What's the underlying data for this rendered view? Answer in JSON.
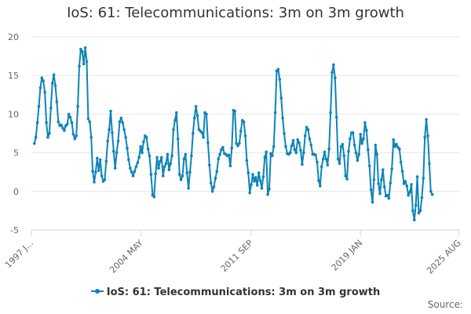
{
  "chart_data": {
    "type": "line",
    "title": "IoS: 61: Telecommunications: 3m on 3m growth",
    "xlabel": "",
    "ylabel": "",
    "ylim": [
      -5,
      20
    ],
    "y_ticks": [
      -5,
      0,
      5,
      10,
      15,
      20
    ],
    "x_range": [
      1997.0,
      2025.6
    ],
    "x_tick_labels": [
      {
        "x": 1997.0,
        "label": "1997 J..."
      },
      {
        "x": 2004.33,
        "label": "2004 MAY"
      },
      {
        "x": 2011.67,
        "label": "2011 SEP"
      },
      {
        "x": 2019.0,
        "label": "2019 JAN"
      },
      {
        "x": 2025.58,
        "label": "2025 AUG"
      }
    ],
    "grid": true,
    "legend": "bottom",
    "series": [
      {
        "name": "IoS: 61: Telecommunications: 3m on 3m growth",
        "color": "#0e84b8",
        "points": [
          [
            1997.2,
            6.2
          ],
          [
            1997.3,
            7.0
          ],
          [
            1997.4,
            8.9
          ],
          [
            1997.5,
            11.0
          ],
          [
            1997.6,
            13.4
          ],
          [
            1997.7,
            14.7
          ],
          [
            1997.8,
            14.3
          ],
          [
            1997.9,
            12.8
          ],
          [
            1998.0,
            8.9
          ],
          [
            1998.1,
            7.0
          ],
          [
            1998.2,
            7.5
          ],
          [
            1998.3,
            10.8
          ],
          [
            1998.4,
            14.0
          ],
          [
            1998.5,
            15.1
          ],
          [
            1998.6,
            13.7
          ],
          [
            1998.7,
            11.6
          ],
          [
            1998.8,
            9.0
          ],
          [
            1998.9,
            8.5
          ],
          [
            1999.0,
            8.6
          ],
          [
            1999.1,
            8.2
          ],
          [
            1999.2,
            7.9
          ],
          [
            1999.3,
            8.5
          ],
          [
            1999.4,
            8.7
          ],
          [
            1999.5,
            10.0
          ],
          [
            1999.6,
            9.6
          ],
          [
            1999.7,
            8.9
          ],
          [
            1999.8,
            7.4
          ],
          [
            1999.9,
            6.8
          ],
          [
            2000.0,
            7.2
          ],
          [
            2000.1,
            11.0
          ],
          [
            2000.2,
            16.2
          ],
          [
            2000.3,
            18.4
          ],
          [
            2000.4,
            18.1
          ],
          [
            2000.5,
            16.5
          ],
          [
            2000.6,
            18.6
          ],
          [
            2000.7,
            16.8
          ],
          [
            2000.8,
            9.4
          ],
          [
            2000.9,
            9.0
          ],
          [
            2001.0,
            7.0
          ],
          [
            2001.1,
            2.6
          ],
          [
            2001.2,
            1.2
          ],
          [
            2001.3,
            2.5
          ],
          [
            2001.4,
            4.3
          ],
          [
            2001.5,
            2.7
          ],
          [
            2001.6,
            4.1
          ],
          [
            2001.7,
            2.0
          ],
          [
            2001.8,
            1.3
          ],
          [
            2001.9,
            1.5
          ],
          [
            2002.0,
            3.9
          ],
          [
            2002.1,
            6.5
          ],
          [
            2002.2,
            8.0
          ],
          [
            2002.3,
            10.4
          ],
          [
            2002.4,
            7.6
          ],
          [
            2002.5,
            5.2
          ],
          [
            2002.6,
            3.0
          ],
          [
            2002.7,
            5.0
          ],
          [
            2002.8,
            6.5
          ],
          [
            2002.9,
            9.0
          ],
          [
            2003.0,
            9.5
          ],
          [
            2003.1,
            8.9
          ],
          [
            2003.2,
            8.0
          ],
          [
            2003.3,
            7.0
          ],
          [
            2003.4,
            5.6
          ],
          [
            2003.5,
            4.1
          ],
          [
            2003.6,
            3.0
          ],
          [
            2003.7,
            2.5
          ],
          [
            2003.8,
            2.0
          ],
          [
            2003.9,
            2.6
          ],
          [
            2004.0,
            3.2
          ],
          [
            2004.1,
            3.7
          ],
          [
            2004.2,
            4.4
          ],
          [
            2004.3,
            5.8
          ],
          [
            2004.4,
            5.0
          ],
          [
            2004.5,
            6.4
          ],
          [
            2004.6,
            7.2
          ],
          [
            2004.7,
            7.0
          ],
          [
            2004.8,
            5.5
          ],
          [
            2004.9,
            4.6
          ],
          [
            2005.0,
            2.2
          ],
          [
            2005.1,
            -0.5
          ],
          [
            2005.2,
            -0.7
          ],
          [
            2005.3,
            2.3
          ],
          [
            2005.4,
            4.4
          ],
          [
            2005.5,
            3.0
          ],
          [
            2005.6,
            3.9
          ],
          [
            2005.7,
            4.4
          ],
          [
            2005.8,
            2.0
          ],
          [
            2005.9,
            3.2
          ],
          [
            2006.0,
            3.6
          ],
          [
            2006.1,
            4.8
          ],
          [
            2006.2,
            2.8
          ],
          [
            2006.3,
            3.6
          ],
          [
            2006.4,
            4.6
          ],
          [
            2006.5,
            8.0
          ],
          [
            2006.6,
            9.2
          ],
          [
            2006.7,
            10.2
          ],
          [
            2006.8,
            6.8
          ],
          [
            2006.9,
            2.2
          ],
          [
            2007.0,
            1.5
          ],
          [
            2007.1,
            2.0
          ],
          [
            2007.2,
            4.2
          ],
          [
            2007.3,
            4.8
          ],
          [
            2007.4,
            2.4
          ],
          [
            2007.5,
            0.4
          ],
          [
            2007.6,
            2.5
          ],
          [
            2007.7,
            4.6
          ],
          [
            2007.8,
            7.5
          ],
          [
            2007.9,
            9.5
          ],
          [
            2008.0,
            11.0
          ],
          [
            2008.1,
            9.8
          ],
          [
            2008.2,
            8.0
          ],
          [
            2008.3,
            7.8
          ],
          [
            2008.4,
            7.6
          ],
          [
            2008.5,
            7.0
          ],
          [
            2008.6,
            10.2
          ],
          [
            2008.7,
            10.0
          ],
          [
            2008.8,
            6.3
          ],
          [
            2008.9,
            3.4
          ],
          [
            2009.0,
            1.1
          ],
          [
            2009.1,
            0.0
          ],
          [
            2009.2,
            0.6
          ],
          [
            2009.3,
            1.7
          ],
          [
            2009.4,
            2.6
          ],
          [
            2009.5,
            4.2
          ],
          [
            2009.6,
            4.8
          ],
          [
            2009.7,
            5.4
          ],
          [
            2009.8,
            5.7
          ],
          [
            2009.9,
            4.9
          ],
          [
            2010.0,
            4.8
          ],
          [
            2010.1,
            4.6
          ],
          [
            2010.2,
            4.7
          ],
          [
            2010.3,
            3.3
          ],
          [
            2010.4,
            5.6
          ],
          [
            2010.5,
            10.5
          ],
          [
            2010.6,
            10.4
          ],
          [
            2010.7,
            6.2
          ],
          [
            2010.8,
            5.9
          ],
          [
            2010.9,
            6.2
          ],
          [
            2011.0,
            7.8
          ],
          [
            2011.1,
            9.2
          ],
          [
            2011.2,
            9.0
          ],
          [
            2011.3,
            7.2
          ],
          [
            2011.4,
            4.0
          ],
          [
            2011.5,
            2.4
          ],
          [
            2011.6,
            -0.2
          ],
          [
            2011.7,
            0.9
          ],
          [
            2011.8,
            2.2
          ],
          [
            2011.9,
            1.3
          ],
          [
            2012.0,
            1.8
          ],
          [
            2012.1,
            0.8
          ],
          [
            2012.2,
            2.4
          ],
          [
            2012.3,
            1.4
          ],
          [
            2012.4,
            0.4
          ],
          [
            2012.5,
            1.9
          ],
          [
            2012.6,
            4.4
          ],
          [
            2012.7,
            5.1
          ],
          [
            2012.8,
            -0.4
          ],
          [
            2012.9,
            0.3
          ],
          [
            2013.0,
            4.9
          ],
          [
            2013.1,
            4.6
          ],
          [
            2013.2,
            5.8
          ],
          [
            2013.3,
            10.2
          ],
          [
            2013.4,
            15.6
          ],
          [
            2013.5,
            15.8
          ],
          [
            2013.6,
            14.5
          ],
          [
            2013.7,
            12.1
          ],
          [
            2013.8,
            9.5
          ],
          [
            2013.9,
            7.5
          ],
          [
            2014.0,
            5.8
          ],
          [
            2014.1,
            4.9
          ],
          [
            2014.2,
            4.8
          ],
          [
            2014.3,
            5.0
          ],
          [
            2014.4,
            5.9
          ],
          [
            2014.5,
            6.6
          ],
          [
            2014.6,
            5.4
          ],
          [
            2014.7,
            5.0
          ],
          [
            2014.8,
            6.7
          ],
          [
            2014.9,
            6.3
          ],
          [
            2015.0,
            5.3
          ],
          [
            2015.1,
            3.5
          ],
          [
            2015.2,
            5.0
          ],
          [
            2015.3,
            7.2
          ],
          [
            2015.4,
            8.3
          ],
          [
            2015.5,
            8.0
          ],
          [
            2015.6,
            6.8
          ],
          [
            2015.7,
            6.0
          ],
          [
            2015.8,
            4.8
          ],
          [
            2015.9,
            4.8
          ],
          [
            2016.0,
            4.7
          ],
          [
            2016.1,
            3.8
          ],
          [
            2016.2,
            1.4
          ],
          [
            2016.3,
            0.7
          ],
          [
            2016.4,
            3.2
          ],
          [
            2016.5,
            4.2
          ],
          [
            2016.6,
            5.1
          ],
          [
            2016.7,
            4.2
          ],
          [
            2016.8,
            3.4
          ],
          [
            2016.9,
            5.5
          ],
          [
            2017.0,
            10.2
          ],
          [
            2017.1,
            15.4
          ],
          [
            2017.2,
            16.4
          ],
          [
            2017.3,
            14.7
          ],
          [
            2017.4,
            9.6
          ],
          [
            2017.5,
            4.2
          ],
          [
            2017.6,
            3.6
          ],
          [
            2017.7,
            5.8
          ],
          [
            2017.8,
            6.1
          ],
          [
            2017.9,
            4.6
          ],
          [
            2018.0,
            2.0
          ],
          [
            2018.1,
            1.6
          ],
          [
            2018.2,
            5.2
          ],
          [
            2018.3,
            6.8
          ],
          [
            2018.4,
            7.6
          ],
          [
            2018.5,
            7.6
          ],
          [
            2018.6,
            6.0
          ],
          [
            2018.7,
            5.0
          ],
          [
            2018.8,
            4.0
          ],
          [
            2018.9,
            4.8
          ],
          [
            2019.0,
            7.4
          ],
          [
            2019.1,
            6.2
          ],
          [
            2019.2,
            6.8
          ],
          [
            2019.3,
            8.9
          ],
          [
            2019.4,
            7.9
          ],
          [
            2019.5,
            5.4
          ],
          [
            2019.6,
            3.3
          ],
          [
            2019.7,
            0.2
          ],
          [
            2019.8,
            -1.4
          ],
          [
            2019.9,
            1.5
          ],
          [
            2020.0,
            6.0
          ],
          [
            2020.1,
            4.8
          ],
          [
            2020.2,
            1.0
          ],
          [
            2020.3,
            -0.3
          ],
          [
            2020.4,
            1.5
          ],
          [
            2020.5,
            2.8
          ],
          [
            2020.6,
            0.6
          ],
          [
            2020.7,
            -0.6
          ],
          [
            2020.8,
            -0.5
          ],
          [
            2020.9,
            -0.9
          ],
          [
            2021.0,
            1.1
          ],
          [
            2021.1,
            2.9
          ],
          [
            2021.2,
            6.7
          ],
          [
            2021.3,
            5.8
          ],
          [
            2021.4,
            6.1
          ],
          [
            2021.5,
            5.7
          ],
          [
            2021.6,
            5.5
          ],
          [
            2021.7,
            3.8
          ],
          [
            2021.8,
            2.6
          ],
          [
            2021.9,
            1.0
          ],
          [
            2022.0,
            1.3
          ],
          [
            2022.1,
            0.7
          ],
          [
            2022.2,
            -0.5
          ],
          [
            2022.3,
            -0.1
          ],
          [
            2022.4,
            0.9
          ],
          [
            2022.5,
            -2.5
          ],
          [
            2022.6,
            -3.7
          ],
          [
            2022.7,
            -1.8
          ],
          [
            2022.8,
            1.9
          ],
          [
            2022.9,
            -2.8
          ],
          [
            2023.0,
            -2.5
          ],
          [
            2023.1,
            -0.8
          ],
          [
            2023.2,
            1.7
          ],
          [
            2023.3,
            7.0
          ],
          [
            2023.4,
            9.3
          ],
          [
            2023.5,
            7.2
          ],
          [
            2023.6,
            3.6
          ],
          [
            2023.7,
            0.0
          ],
          [
            2023.8,
            -0.4
          ]
        ]
      }
    ]
  },
  "legend": {
    "label": "IoS: 61: Telecommunications: 3m on 3m growth"
  },
  "footer": {
    "source": "Source:"
  }
}
